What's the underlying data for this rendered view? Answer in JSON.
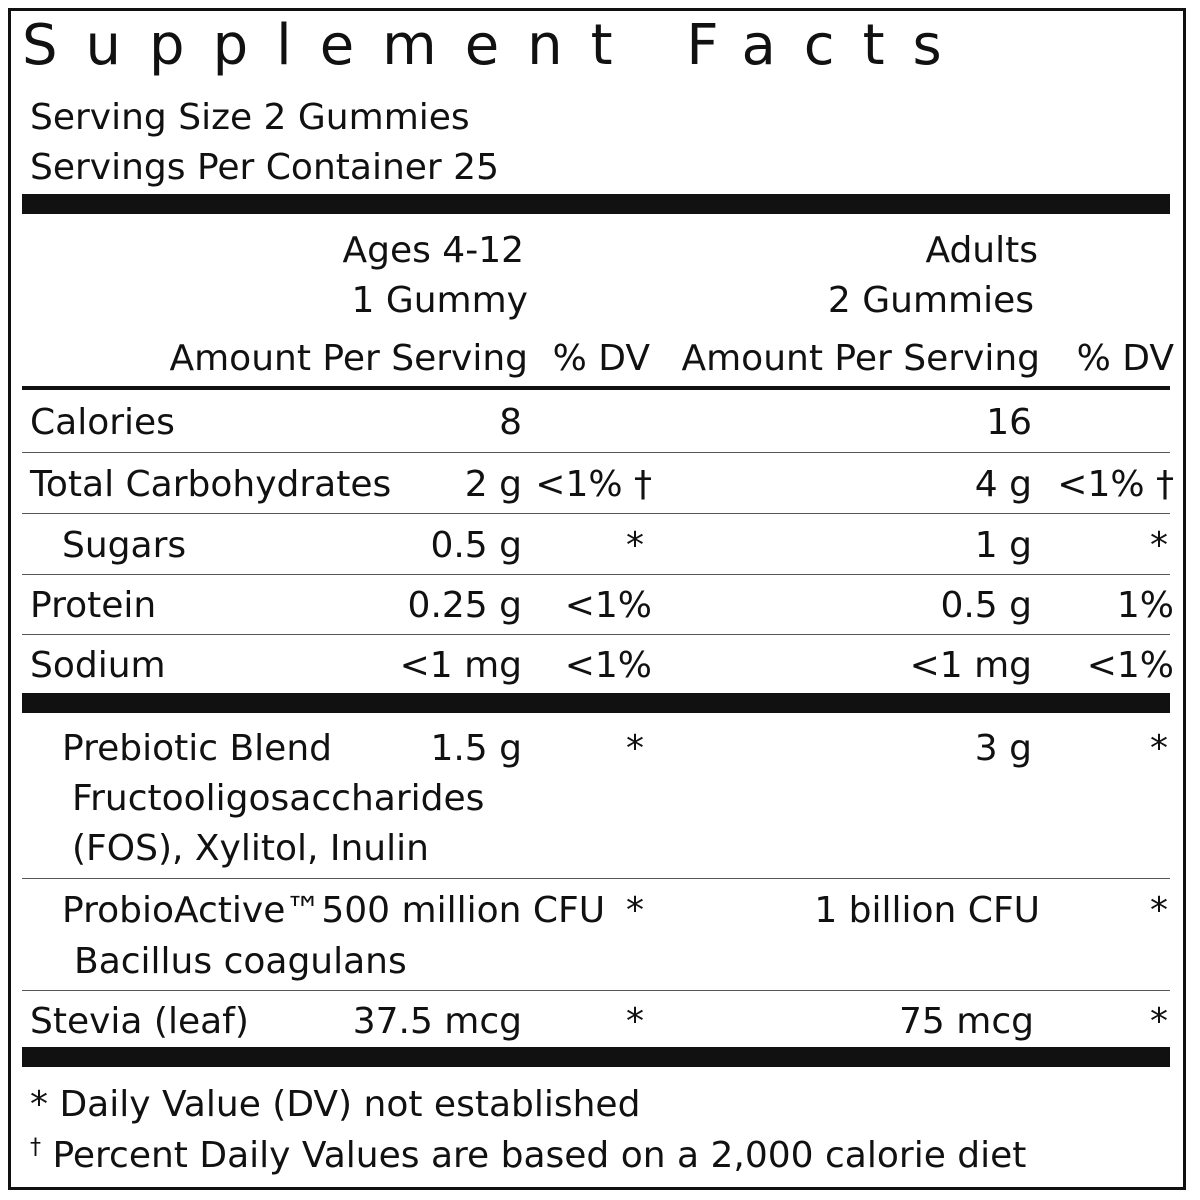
{
  "title": "Supplement Facts",
  "serving_size": "Serving Size 2 Gummies",
  "servings_per_container": "Servings Per Container 25",
  "columns": {
    "kids_group": "Ages 4-12",
    "kids_serving": "1 Gummy",
    "adults_group": "Adults",
    "adults_serving": "2 Gummies",
    "amount_header": "Amount Per Serving",
    "dv_header": "% DV"
  },
  "rows": [
    {
      "name": "Calories",
      "kids_amount": "8",
      "kids_dv": "",
      "adult_amount": "16",
      "adult_dv": ""
    },
    {
      "name": "Total Carbohydrates",
      "kids_amount": "2 g",
      "kids_dv": "<1% †",
      "adult_amount": "4 g",
      "adult_dv": "<1% †"
    },
    {
      "name": "Sugars",
      "kids_amount": "0.5 g",
      "kids_dv": "*",
      "adult_amount": "1 g",
      "adult_dv": "*"
    },
    {
      "name": "Protein",
      "kids_amount": "0.25 g",
      "kids_dv": "<1%",
      "adult_amount": "0.5 g",
      "adult_dv": "1%"
    },
    {
      "name": "Sodium",
      "kids_amount": "<1 mg",
      "kids_dv": "<1%",
      "adult_amount": "<1 mg",
      "adult_dv": "<1%"
    }
  ],
  "prebiotic": {
    "name": "Prebiotic Blend",
    "sub1": "Fructooligosaccharides",
    "sub2": "(FOS), Xylitol, Inulin",
    "kids_amount": "1.5 g",
    "kids_dv": "*",
    "adult_amount": "3 g",
    "adult_dv": "*"
  },
  "probiotic": {
    "name": "ProbioActive™500 million CFU",
    "sub1": "Bacillus coagulans",
    "kids_dv": "*",
    "adult_amount": "1 billion CFU",
    "adult_dv": "*"
  },
  "stevia": {
    "name": "Stevia (leaf)",
    "kids_amount": "37.5 mcg",
    "kids_dv": "*",
    "adult_amount": "75 mcg",
    "adult_dv": "*"
  },
  "footnotes": {
    "asterisk": "* Daily Value (DV) not established",
    "dagger_symbol": "†",
    "dagger_text": "Percent Daily Values are based on a 2,000 calorie diet"
  }
}
